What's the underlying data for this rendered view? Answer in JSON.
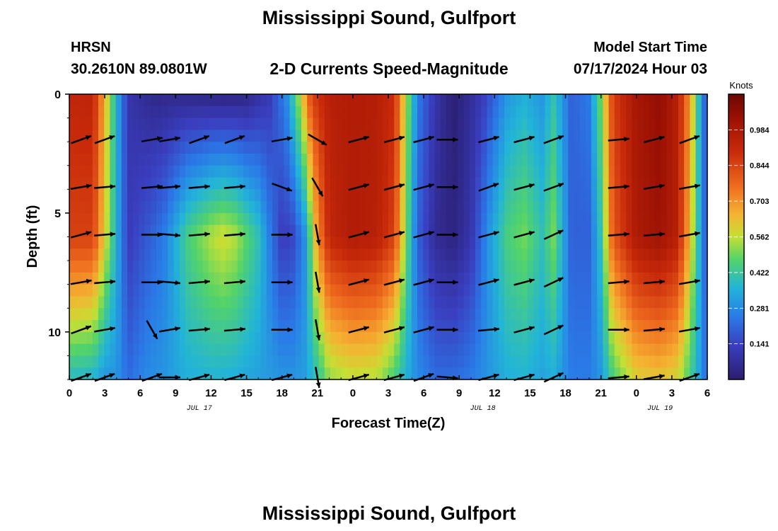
{
  "header": {
    "title": "Mississippi Sound, Gulfport",
    "station_code": "HRSN",
    "station_coords": "30.2610N  89.0801W",
    "plot_title": "2-D Currents Speed-Magnitude",
    "model_start_label": "Model Start Time",
    "model_start_value": "07/17/2024 Hour 03"
  },
  "footer": {
    "repeated_title": "Mississippi Sound, Gulfport"
  },
  "colors": {
    "low": "#2b1d6e",
    "mid": "#30c8c8",
    "high": "#7a0a00",
    "vector": "#000000"
  },
  "chart_data": {
    "type": "heatmap",
    "xlabel": "Forecast Time(Z)",
    "ylabel": "Depth (ft)",
    "x_tick_labels": [
      "0",
      "3",
      "6",
      "9",
      "12",
      "15",
      "18",
      "21",
      "0",
      "3",
      "6",
      "9",
      "12",
      "15",
      "18",
      "21",
      "0",
      "3",
      "6"
    ],
    "date_labels": [
      {
        "label": "JUL 17",
        "hour": 11
      },
      {
        "label": "JUL 18",
        "hour": 35
      },
      {
        "label": "JUL 19",
        "hour": 50
      }
    ],
    "xlim_hours": [
      0,
      54
    ],
    "ylim_ft": [
      0,
      12
    ],
    "y_ticks": [
      0,
      5,
      10
    ],
    "y_reversed": true,
    "colorbar": {
      "title": "Knots",
      "ticks": [
        "0.984",
        "0.844",
        "0.703",
        "0.562",
        "0.422",
        "0.281",
        "0.141"
      ],
      "min": 0.0,
      "max": 1.125
    },
    "speed_profile_surface": [
      [
        0,
        0.92
      ],
      [
        2,
        0.93
      ],
      [
        3,
        0.65
      ],
      [
        4,
        0.35
      ],
      [
        5,
        0.1
      ],
      [
        7,
        0.05
      ],
      [
        9,
        0.05
      ],
      [
        11,
        0.04
      ],
      [
        13,
        0.03
      ],
      [
        15,
        0.04
      ],
      [
        17,
        0.12
      ],
      [
        18.5,
        0.3
      ],
      [
        19.5,
        0.55
      ],
      [
        20.5,
        0.85
      ],
      [
        22,
        0.95
      ],
      [
        24,
        0.97
      ],
      [
        26,
        0.96
      ],
      [
        27.5,
        0.9
      ],
      [
        28.5,
        0.55
      ],
      [
        29.5,
        0.25
      ],
      [
        31,
        0.1
      ],
      [
        32.5,
        0.01
      ],
      [
        33.5,
        0.05
      ],
      [
        35,
        0.12
      ],
      [
        37,
        0.3
      ],
      [
        38.5,
        0.35
      ],
      [
        40,
        0.3
      ],
      [
        41,
        0.4
      ],
      [
        42.5,
        0.2
      ],
      [
        44,
        0.25
      ],
      [
        45,
        0.5
      ],
      [
        46,
        0.85
      ],
      [
        48,
        1.0
      ],
      [
        50,
        1.05
      ],
      [
        51.5,
        0.95
      ],
      [
        52.5,
        0.7
      ],
      [
        53.5,
        0.3
      ],
      [
        54,
        0.15
      ]
    ],
    "speed_profile_mid": [
      [
        0,
        0.85
      ],
      [
        2,
        0.85
      ],
      [
        3,
        0.6
      ],
      [
        4,
        0.35
      ],
      [
        5,
        0.12
      ],
      [
        6.5,
        0.18
      ],
      [
        8,
        0.25
      ],
      [
        10,
        0.45
      ],
      [
        12,
        0.55
      ],
      [
        13,
        0.58
      ],
      [
        14,
        0.55
      ],
      [
        16,
        0.4
      ],
      [
        17,
        0.25
      ],
      [
        18,
        0.12
      ],
      [
        19,
        0.15
      ],
      [
        20,
        0.3
      ],
      [
        21,
        0.7
      ],
      [
        22,
        0.92
      ],
      [
        24,
        0.97
      ],
      [
        26,
        0.95
      ],
      [
        27.5,
        0.85
      ],
      [
        28.5,
        0.5
      ],
      [
        29.5,
        0.2
      ],
      [
        31,
        0.06
      ],
      [
        32.5,
        0.03
      ],
      [
        34,
        0.1
      ],
      [
        35.5,
        0.3
      ],
      [
        37,
        0.45
      ],
      [
        38.5,
        0.5
      ],
      [
        40,
        0.4
      ],
      [
        41,
        0.5
      ],
      [
        42.5,
        0.2
      ],
      [
        44,
        0.2
      ],
      [
        45,
        0.4
      ],
      [
        46,
        0.8
      ],
      [
        48,
        0.98
      ],
      [
        50,
        1.02
      ],
      [
        51.5,
        0.95
      ],
      [
        52.5,
        0.65
      ],
      [
        53.5,
        0.3
      ],
      [
        54,
        0.15
      ]
    ],
    "speed_profile_bottom": [
      [
        0,
        0.38
      ],
      [
        2,
        0.36
      ],
      [
        3,
        0.3
      ],
      [
        4,
        0.3
      ],
      [
        5,
        0.22
      ],
      [
        6.5,
        0.28
      ],
      [
        8,
        0.3
      ],
      [
        10,
        0.35
      ],
      [
        12,
        0.36
      ],
      [
        14,
        0.35
      ],
      [
        16,
        0.32
      ],
      [
        18,
        0.3
      ],
      [
        19,
        0.3
      ],
      [
        20,
        0.32
      ],
      [
        21,
        0.4
      ],
      [
        22,
        0.52
      ],
      [
        24,
        0.56
      ],
      [
        26,
        0.55
      ],
      [
        27.5,
        0.45
      ],
      [
        28.5,
        0.35
      ],
      [
        29.5,
        0.28
      ],
      [
        31,
        0.22
      ],
      [
        32.5,
        0.22
      ],
      [
        34,
        0.25
      ],
      [
        35.5,
        0.3
      ],
      [
        37,
        0.35
      ],
      [
        38.5,
        0.36
      ],
      [
        40,
        0.33
      ],
      [
        41,
        0.35
      ],
      [
        42.5,
        0.25
      ],
      [
        44,
        0.25
      ],
      [
        45,
        0.3
      ],
      [
        46,
        0.45
      ],
      [
        48,
        0.6
      ],
      [
        50,
        0.62
      ],
      [
        51.5,
        0.58
      ],
      [
        52.5,
        0.45
      ],
      [
        53.5,
        0.3
      ],
      [
        54,
        0.2
      ]
    ],
    "vector_columns_hours": [
      1,
      3,
      7,
      8.5,
      11,
      14,
      18,
      21,
      24.5,
      27.5,
      30,
      32,
      35.5,
      38.5,
      41,
      46.5,
      49.5,
      52.5
    ],
    "vector_rows_ft": [
      2,
      4,
      6,
      8,
      10,
      12
    ],
    "vector_angles_deg": [
      [
        -20,
        -20,
        -10,
        -10,
        -20,
        -20,
        -10,
        30,
        -15,
        -15,
        -15,
        0,
        -15,
        -15,
        -20,
        -5,
        -15,
        -20
      ],
      [
        -10,
        -5,
        -5,
        -5,
        -5,
        -5,
        20,
        60,
        -15,
        -15,
        -15,
        0,
        -20,
        -15,
        -20,
        -5,
        -10,
        -10
      ],
      [
        -15,
        -5,
        0,
        5,
        -5,
        -5,
        0,
        80,
        -15,
        -15,
        -15,
        0,
        -15,
        -15,
        -25,
        -5,
        -5,
        -10
      ],
      [
        -10,
        -5,
        0,
        5,
        -5,
        -5,
        0,
        80,
        -15,
        -15,
        -15,
        0,
        -15,
        -15,
        -25,
        -5,
        -5,
        -10
      ],
      [
        -20,
        -10,
        60,
        -10,
        -5,
        -5,
        0,
        80,
        -15,
        -15,
        -15,
        0,
        -5,
        -15,
        -25,
        0,
        -5,
        -10
      ],
      [
        -20,
        -20,
        -20,
        0,
        -15,
        -15,
        -15,
        80,
        -15,
        -15,
        -20,
        5,
        -15,
        -15,
        -25,
        -5,
        -10,
        -20
      ]
    ]
  }
}
